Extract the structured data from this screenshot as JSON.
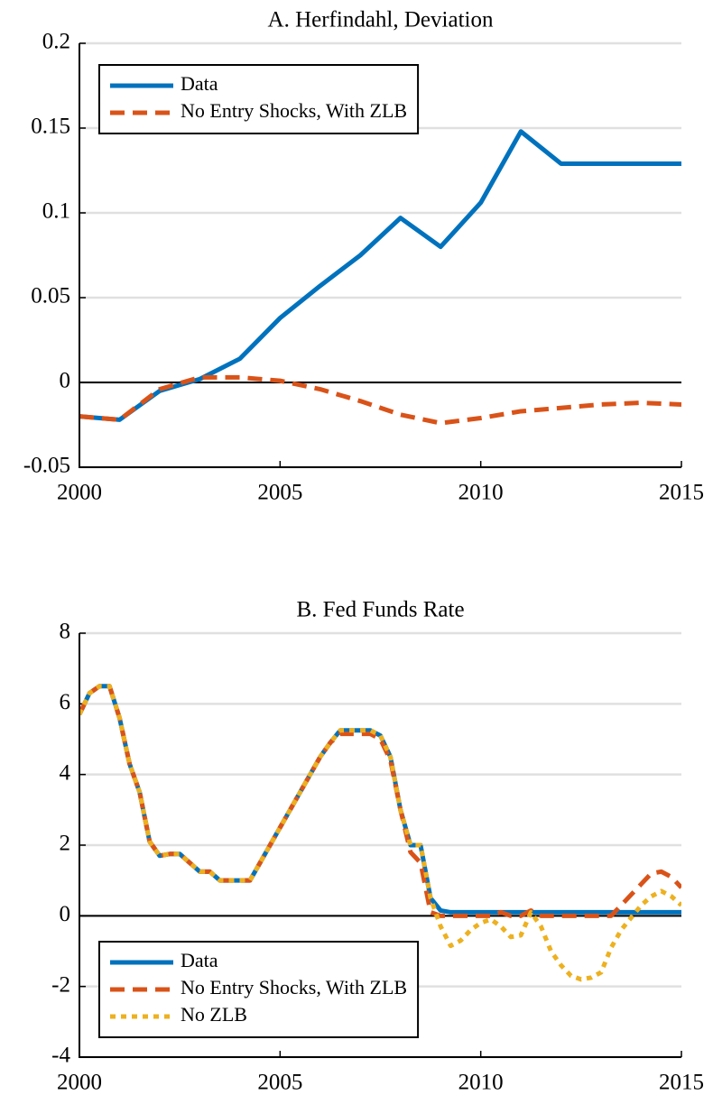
{
  "chart_data": [
    {
      "type": "line",
      "title": "A. Herfindahl, Deviation",
      "x": [
        2000,
        2001,
        2002,
        2003,
        2004,
        2005,
        2006,
        2007,
        2008,
        2009,
        2010,
        2011,
        2012,
        2013,
        2014,
        2015
      ],
      "series": [
        {
          "name": "Data",
          "color": "#0072bd",
          "style": "solid",
          "values": [
            -0.02,
            -0.022,
            -0.005,
            0.002,
            0.014,
            0.038,
            0.057,
            0.075,
            0.097,
            0.08,
            0.106,
            0.148,
            0.129,
            0.129,
            0.129,
            0.129
          ]
        },
        {
          "name": "No Entry Shocks, With ZLB",
          "color": "#d95319",
          "style": "dashed",
          "values": [
            -0.02,
            -0.022,
            -0.004,
            0.003,
            0.003,
            0.001,
            -0.004,
            -0.011,
            -0.019,
            -0.024,
            -0.021,
            -0.017,
            -0.015,
            -0.013,
            -0.012,
            -0.013
          ]
        }
      ],
      "xlim": [
        2000,
        2015
      ],
      "xticks": [
        2000,
        2005,
        2010,
        2015
      ],
      "ylim": [
        -0.05,
        0.2
      ],
      "yticks": [
        -0.05,
        0,
        0.05,
        0.1,
        0.15,
        0.2
      ],
      "grid": true,
      "legend": "upper left"
    },
    {
      "type": "line",
      "title": "B. Fed Funds Rate",
      "x": [
        2000,
        2000.25,
        2000.5,
        2000.75,
        2001,
        2001.25,
        2001.5,
        2001.75,
        2002,
        2002.25,
        2002.5,
        2002.75,
        2003,
        2003.25,
        2003.5,
        2003.75,
        2004,
        2004.25,
        2004.5,
        2004.75,
        2005,
        2005.25,
        2005.5,
        2005.75,
        2006,
        2006.25,
        2006.5,
        2006.75,
        2007,
        2007.25,
        2007.5,
        2007.75,
        2008,
        2008.25,
        2008.5,
        2008.75,
        2009,
        2009.25,
        2009.5,
        2009.75,
        2010,
        2010.25,
        2010.5,
        2010.75,
        2011,
        2011.25,
        2011.5,
        2011.75,
        2012,
        2012.25,
        2012.5,
        2012.75,
        2013,
        2013.25,
        2013.5,
        2013.75,
        2014,
        2014.25,
        2014.5,
        2014.75,
        2015
      ],
      "series": [
        {
          "name": "Data",
          "color": "#0072bd",
          "style": "solid",
          "values": [
            5.7,
            6.3,
            6.5,
            6.5,
            5.6,
            4.3,
            3.5,
            2.1,
            1.7,
            1.75,
            1.75,
            1.5,
            1.25,
            1.25,
            1.0,
            1.0,
            1.0,
            1.0,
            1.5,
            2.0,
            2.5,
            3.0,
            3.5,
            4.0,
            4.5,
            4.9,
            5.25,
            5.25,
            5.25,
            5.25,
            5.1,
            4.5,
            3.0,
            2.0,
            2.0,
            0.5,
            0.15,
            0.1,
            0.1,
            0.1,
            0.1,
            0.1,
            0.1,
            0.1,
            0.1,
            0.1,
            0.1,
            0.1,
            0.1,
            0.1,
            0.1,
            0.1,
            0.1,
            0.1,
            0.1,
            0.1,
            0.1,
            0.1,
            0.1,
            0.1,
            0.1
          ]
        },
        {
          "name": "No Entry Shocks, With ZLB",
          "color": "#d95319",
          "style": "dashed",
          "values": [
            5.7,
            6.3,
            6.5,
            6.5,
            5.6,
            4.3,
            3.5,
            2.1,
            1.7,
            1.75,
            1.75,
            1.5,
            1.25,
            1.25,
            1.0,
            1.0,
            1.0,
            1.0,
            1.5,
            2.0,
            2.5,
            3.0,
            3.5,
            4.0,
            4.5,
            4.9,
            5.15,
            5.15,
            5.15,
            5.15,
            5.0,
            4.4,
            3.0,
            1.8,
            1.5,
            0.1,
            0,
            0,
            0,
            0,
            0,
            0,
            0.1,
            0,
            0,
            0.15,
            0,
            0,
            0,
            0,
            0,
            0,
            0,
            0,
            0.3,
            0.6,
            0.9,
            1.2,
            1.25,
            1.1,
            0.8
          ]
        },
        {
          "name": "No ZLB",
          "color": "#edb120",
          "style": "dotted",
          "values": [
            5.7,
            6.3,
            6.5,
            6.5,
            5.6,
            4.3,
            3.5,
            2.1,
            1.7,
            1.75,
            1.75,
            1.5,
            1.25,
            1.25,
            1.0,
            1.0,
            1.0,
            1.0,
            1.5,
            2.0,
            2.5,
            3.0,
            3.5,
            4.0,
            4.5,
            4.9,
            5.25,
            5.25,
            5.25,
            5.25,
            5.1,
            4.5,
            3.0,
            2.0,
            2.0,
            0.5,
            -0.3,
            -0.85,
            -0.7,
            -0.4,
            -0.2,
            -0.1,
            -0.3,
            -0.6,
            -0.55,
            0.1,
            -0.3,
            -1.0,
            -1.4,
            -1.7,
            -1.8,
            -1.75,
            -1.6,
            -0.9,
            -0.4,
            -0.05,
            0.3,
            0.55,
            0.7,
            0.55,
            0.3
          ]
        }
      ],
      "xlim": [
        2000,
        2015
      ],
      "xticks": [
        2000,
        2005,
        2010,
        2015
      ],
      "ylim": [
        -4,
        8
      ],
      "yticks": [
        -4,
        -2,
        0,
        2,
        4,
        6,
        8
      ],
      "grid": true,
      "legend": "lower left"
    }
  ]
}
